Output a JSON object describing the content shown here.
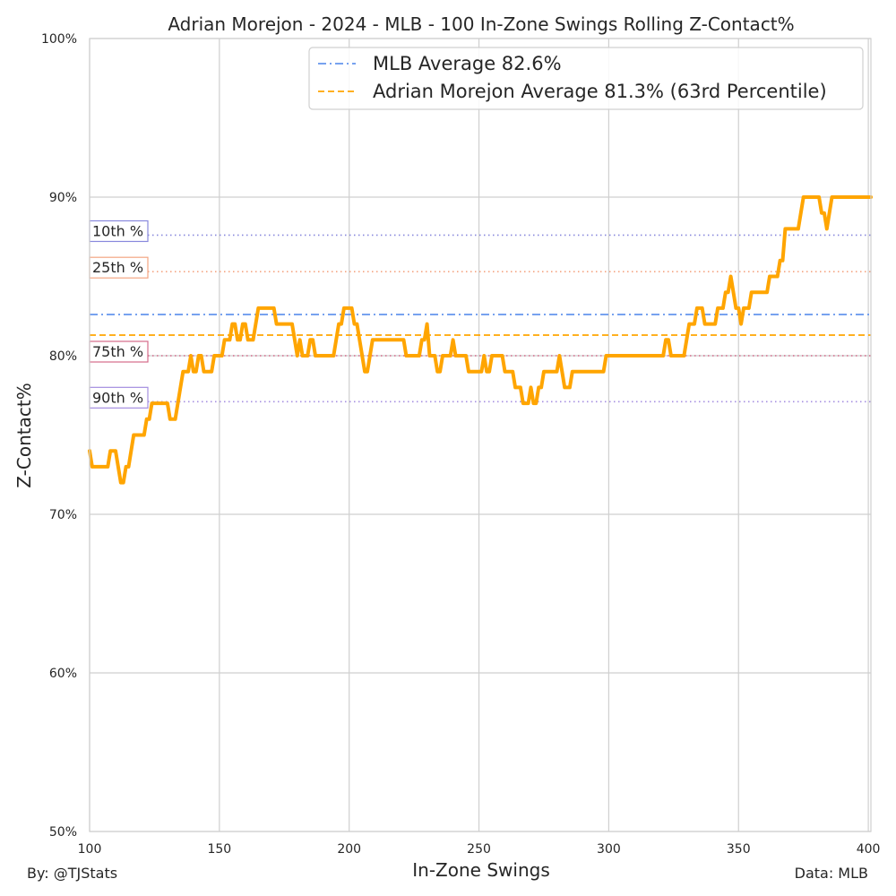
{
  "chart_data": {
    "type": "line",
    "title": "Adrian Morejon - 2024 - MLB - 100 In-Zone Swings Rolling Z-Contact%",
    "xlabel": "In-Zone Swings",
    "ylabel": "Z-Contact%",
    "xlim": [
      100,
      401
    ],
    "ylim": [
      50,
      100
    ],
    "xticks": [
      100,
      150,
      200,
      250,
      300,
      350,
      400
    ],
    "xtick_labels": [
      "100",
      "150",
      "200",
      "250",
      "300",
      "350",
      "400"
    ],
    "yticks": [
      50,
      60,
      70,
      80,
      90,
      100
    ],
    "ytick_labels": [
      "50%",
      "60%",
      "70%",
      "80%",
      "90%",
      "100%"
    ],
    "grid": true,
    "legend_position": "top-right",
    "series": [
      {
        "name": "Adrian Morejon",
        "color": "#FFA500",
        "points": [
          [
            100,
            74
          ],
          [
            101,
            73
          ],
          [
            107,
            73
          ],
          [
            108,
            74
          ],
          [
            110,
            74
          ],
          [
            112,
            72
          ],
          [
            113,
            72
          ],
          [
            114,
            73
          ],
          [
            115,
            73
          ],
          [
            117,
            75
          ],
          [
            121,
            75
          ],
          [
            122,
            76
          ],
          [
            123,
            76
          ],
          [
            124,
            77
          ],
          [
            130,
            77
          ],
          [
            131,
            76
          ],
          [
            133,
            76
          ],
          [
            136,
            79
          ],
          [
            138,
            79
          ],
          [
            139,
            80
          ],
          [
            140,
            79
          ],
          [
            141,
            79
          ],
          [
            142,
            80
          ],
          [
            143,
            80
          ],
          [
            144,
            79
          ],
          [
            147,
            79
          ],
          [
            148,
            80
          ],
          [
            151,
            80
          ],
          [
            152,
            81
          ],
          [
            154,
            81
          ],
          [
            155,
            82
          ],
          [
            156,
            82
          ],
          [
            157,
            81
          ],
          [
            158,
            81
          ],
          [
            159,
            82
          ],
          [
            160,
            82
          ],
          [
            161,
            81
          ],
          [
            163,
            81
          ],
          [
            165,
            83
          ],
          [
            171,
            83
          ],
          [
            172,
            82
          ],
          [
            178,
            82
          ],
          [
            180,
            80
          ],
          [
            181,
            81
          ],
          [
            182,
            80
          ],
          [
            184,
            80
          ],
          [
            185,
            81
          ],
          [
            186,
            81
          ],
          [
            187,
            80
          ],
          [
            194,
            80
          ],
          [
            196,
            82
          ],
          [
            197,
            82
          ],
          [
            198,
            83
          ],
          [
            201,
            83
          ],
          [
            202,
            82
          ],
          [
            203,
            82
          ],
          [
            205,
            80
          ],
          [
            206,
            79
          ],
          [
            207,
            79
          ],
          [
            209,
            81
          ],
          [
            221,
            81
          ],
          [
            222,
            80
          ],
          [
            227,
            80
          ],
          [
            228,
            81
          ],
          [
            229,
            81
          ],
          [
            230,
            82
          ],
          [
            231,
            80
          ],
          [
            233,
            80
          ],
          [
            234,
            79
          ],
          [
            235,
            79
          ],
          [
            236,
            80
          ],
          [
            239,
            80
          ],
          [
            240,
            81
          ],
          [
            241,
            80
          ],
          [
            245,
            80
          ],
          [
            246,
            79
          ],
          [
            251,
            79
          ],
          [
            252,
            80
          ],
          [
            253,
            79
          ],
          [
            254,
            79
          ],
          [
            255,
            80
          ],
          [
            259,
            80
          ],
          [
            260,
            79
          ],
          [
            263,
            79
          ],
          [
            264,
            78
          ],
          [
            266,
            78
          ],
          [
            267,
            77
          ],
          [
            269,
            77
          ],
          [
            270,
            78
          ],
          [
            271,
            77
          ],
          [
            272,
            77
          ],
          [
            273,
            78
          ],
          [
            274,
            78
          ],
          [
            275,
            79
          ],
          [
            280,
            79
          ],
          [
            281,
            80
          ],
          [
            283,
            78
          ],
          [
            285,
            78
          ],
          [
            286,
            79
          ],
          [
            298,
            79
          ],
          [
            299,
            80
          ],
          [
            321,
            80
          ],
          [
            322,
            81
          ],
          [
            323,
            81
          ],
          [
            324,
            80
          ],
          [
            329,
            80
          ],
          [
            331,
            82
          ],
          [
            333,
            82
          ],
          [
            334,
            83
          ],
          [
            336,
            83
          ],
          [
            337,
            82
          ],
          [
            341,
            82
          ],
          [
            342,
            83
          ],
          [
            344,
            83
          ],
          [
            345,
            84
          ],
          [
            346,
            84
          ],
          [
            347,
            85
          ],
          [
            348,
            84
          ],
          [
            349,
            83
          ],
          [
            350,
            83
          ],
          [
            351,
            82
          ],
          [
            352,
            83
          ],
          [
            354,
            83
          ],
          [
            355,
            84
          ],
          [
            361,
            84
          ],
          [
            362,
            85
          ],
          [
            365,
            85
          ],
          [
            366,
            86
          ],
          [
            367,
            86
          ],
          [
            368,
            88
          ],
          [
            373,
            88
          ],
          [
            375,
            90
          ],
          [
            381,
            90
          ],
          [
            382,
            89
          ],
          [
            383,
            89
          ],
          [
            384,
            88
          ],
          [
            386,
            90
          ],
          [
            401,
            90
          ]
        ]
      }
    ],
    "reference_lines": [
      {
        "name": "MLB Average 82.6%",
        "value": 82.6,
        "color": "#6495ED",
        "style": "dashdot"
      },
      {
        "name": "Adrian Morejon Average 81.3% (63rd Percentile)",
        "value": 81.3,
        "color": "#FFA500",
        "style": "dashed"
      }
    ],
    "percentile_lines": [
      {
        "label": "10th %",
        "value": 87.6,
        "color": "#8888DD"
      },
      {
        "label": "25th %",
        "value": 85.3,
        "color": "#F4A582"
      },
      {
        "label": "75th %",
        "value": 80.0,
        "color": "#D46A8A"
      },
      {
        "label": "90th %",
        "value": 77.1,
        "color": "#A58FE0"
      }
    ]
  },
  "footer": {
    "left": "By: @TJStats",
    "right": "Data: MLB"
  }
}
